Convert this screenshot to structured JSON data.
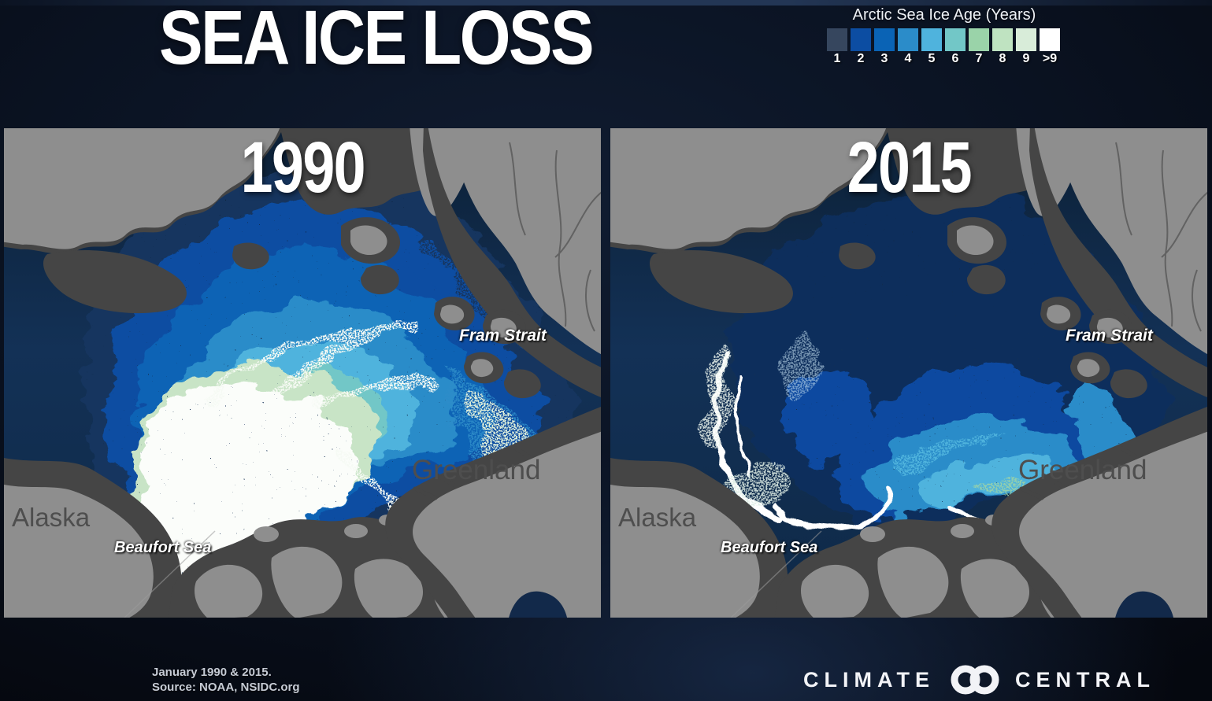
{
  "header": {
    "title": "SEA ICE LOSS"
  },
  "legend": {
    "title": "Arctic Sea Ice Age (Years)",
    "items": [
      {
        "label": "1",
        "color": "#36465e"
      },
      {
        "label": "2",
        "color": "#0c4da2"
      },
      {
        "label": "3",
        "color": "#0a63b5"
      },
      {
        "label": "4",
        "color": "#2b8cc9"
      },
      {
        "label": "5",
        "color": "#4fb3dd"
      },
      {
        "label": "6",
        "color": "#72c7c7"
      },
      {
        "label": "7",
        "color": "#9ad3a9"
      },
      {
        "label": "8",
        "color": "#bfe3c1"
      },
      {
        "label": "9",
        "color": "#d8ecd9"
      },
      {
        "label": ">9",
        "color": "#ffffff"
      }
    ]
  },
  "panels": [
    {
      "year": "1990",
      "labels": {
        "fram_strait": "Fram Strait",
        "greenland": "Greenland",
        "alaska": "Alaska",
        "beaufort_sea": "Beaufort Sea"
      }
    },
    {
      "year": "2015",
      "labels": {
        "fram_strait": "Fram Strait",
        "greenland": "Greenland",
        "alaska": "Alaska",
        "beaufort_sea": "Beaufort Sea"
      }
    }
  ],
  "footer": {
    "caption_line1": "January 1990 & 2015.",
    "caption_line2": "Source: NOAA, NSIDC.org",
    "brand_left": "CLIMATE",
    "brand_right": "CENTRAL"
  },
  "colors": {
    "background": "#0a1221",
    "ocean": "#10294a",
    "land": "#8e8e8e",
    "land_shadow": "#454545"
  }
}
